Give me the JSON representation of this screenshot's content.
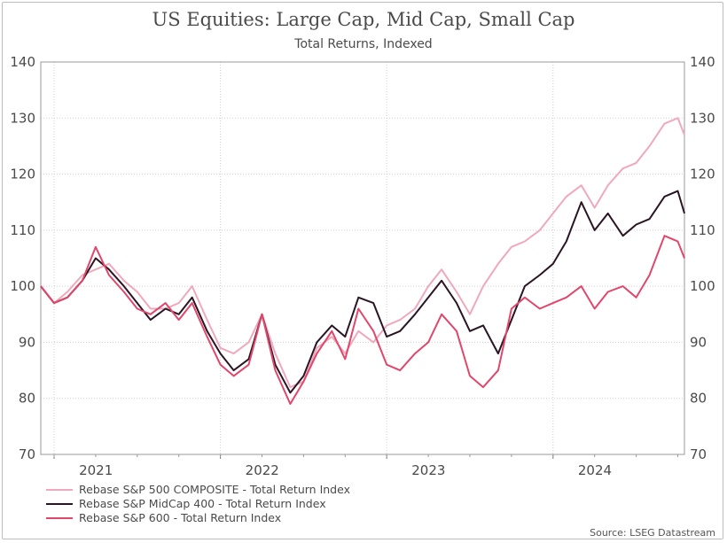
{
  "chart_data": {
    "type": "line",
    "title": "US Equities: Large Cap, Mid Cap, Small Cap",
    "subtitle": "Total Returns, Indexed",
    "source": "Source: LSEG Datastream",
    "xlabel": "",
    "ylabel": "",
    "x_start": 2020.92,
    "x_end": 2024.79,
    "x_ticks": [
      2021,
      2022,
      2023,
      2024
    ],
    "x_tick_labels": [
      "2021",
      "2022",
      "2023",
      "2024"
    ],
    "ylim": [
      70,
      140
    ],
    "y_ticks": [
      70,
      80,
      90,
      100,
      110,
      120,
      130,
      140
    ],
    "grid": true,
    "legend_position": "bottom-left",
    "series": [
      {
        "name": "Rebase S&P 500 COMPOSITE - Total Return Index",
        "color": "#f0a8bc",
        "x": [
          2020.92,
          2021.0,
          2021.08,
          2021.17,
          2021.25,
          2021.33,
          2021.42,
          2021.5,
          2021.58,
          2021.67,
          2021.75,
          2021.83,
          2021.92,
          2022.0,
          2022.08,
          2022.17,
          2022.25,
          2022.33,
          2022.42,
          2022.5,
          2022.58,
          2022.67,
          2022.75,
          2022.83,
          2022.92,
          2023.0,
          2023.08,
          2023.17,
          2023.25,
          2023.33,
          2023.42,
          2023.5,
          2023.58,
          2023.67,
          2023.75,
          2023.83,
          2023.92,
          2024.0,
          2024.08,
          2024.17,
          2024.25,
          2024.33,
          2024.42,
          2024.5,
          2024.58,
          2024.67,
          2024.75,
          2024.79
        ],
        "values": [
          100,
          97,
          99,
          102,
          103,
          104,
          101,
          99,
          96,
          96,
          97,
          100,
          94,
          89,
          88,
          90,
          95,
          88,
          82,
          83,
          89,
          91,
          88,
          92,
          90,
          93,
          94,
          96,
          100,
          103,
          99,
          95,
          100,
          104,
          107,
          108,
          110,
          113,
          116,
          118,
          114,
          118,
          121,
          122,
          125,
          129,
          130,
          127
        ]
      },
      {
        "name": "Rebase S&P MidCap 400 - Total Return Index",
        "color": "#2a1524",
        "x": [
          2020.92,
          2021.0,
          2021.08,
          2021.17,
          2021.25,
          2021.33,
          2021.42,
          2021.5,
          2021.58,
          2021.67,
          2021.75,
          2021.83,
          2021.92,
          2022.0,
          2022.08,
          2022.17,
          2022.25,
          2022.33,
          2022.42,
          2022.5,
          2022.58,
          2022.67,
          2022.75,
          2022.83,
          2022.92,
          2023.0,
          2023.08,
          2023.17,
          2023.25,
          2023.33,
          2023.42,
          2023.5,
          2023.58,
          2023.67,
          2023.75,
          2023.83,
          2023.92,
          2024.0,
          2024.08,
          2024.17,
          2024.25,
          2024.33,
          2024.42,
          2024.5,
          2024.58,
          2024.67,
          2024.75,
          2024.79
        ],
        "values": [
          100,
          97,
          98,
          101,
          105,
          103,
          100,
          97,
          94,
          96,
          95,
          98,
          92,
          88,
          85,
          87,
          95,
          86,
          81,
          84,
          90,
          93,
          91,
          98,
          97,
          91,
          92,
          95,
          98,
          101,
          97,
          92,
          93,
          88,
          94,
          100,
          102,
          104,
          108,
          115,
          110,
          113,
          109,
          111,
          112,
          116,
          117,
          113
        ]
      },
      {
        "name": "Rebase S&P 600 - Total Return Index",
        "color": "#e0476b",
        "x": [
          2020.92,
          2021.0,
          2021.08,
          2021.17,
          2021.25,
          2021.33,
          2021.42,
          2021.5,
          2021.58,
          2021.67,
          2021.75,
          2021.83,
          2021.92,
          2022.0,
          2022.08,
          2022.17,
          2022.25,
          2022.33,
          2022.42,
          2022.5,
          2022.58,
          2022.67,
          2022.75,
          2022.83,
          2022.92,
          2023.0,
          2023.08,
          2023.17,
          2023.25,
          2023.33,
          2023.42,
          2023.5,
          2023.58,
          2023.67,
          2023.75,
          2023.83,
          2023.92,
          2024.0,
          2024.08,
          2024.17,
          2024.25,
          2024.33,
          2024.42,
          2024.5,
          2024.58,
          2024.67,
          2024.75,
          2024.79
        ],
        "values": [
          100,
          97,
          98,
          101,
          107,
          102,
          99,
          96,
          95,
          97,
          94,
          97,
          91,
          86,
          84,
          86,
          95,
          85,
          79,
          83,
          88,
          92,
          87,
          96,
          92,
          86,
          85,
          88,
          90,
          95,
          92,
          84,
          82,
          85,
          96,
          98,
          96,
          97,
          98,
          100,
          96,
          99,
          100,
          98,
          102,
          109,
          108,
          105
        ]
      }
    ]
  }
}
